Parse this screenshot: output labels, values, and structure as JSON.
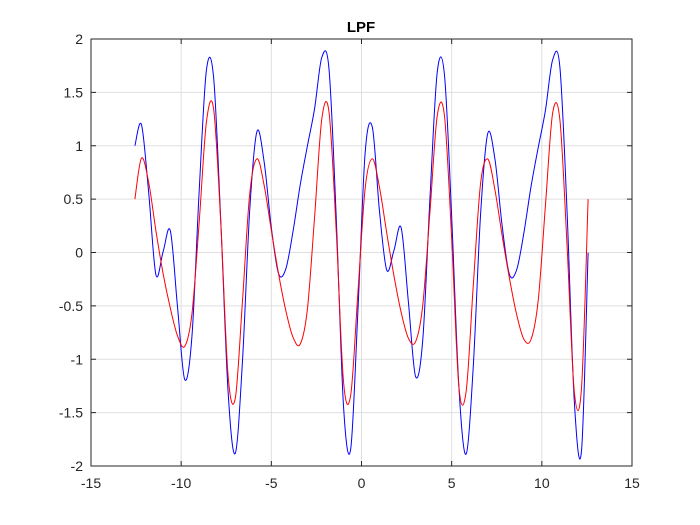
{
  "chart_data": {
    "type": "line",
    "title": "LPF",
    "xlabel": "",
    "ylabel": "",
    "xlim": [
      -15,
      15
    ],
    "ylim": [
      -2,
      2
    ],
    "grid": true,
    "x_ticks": [
      -15,
      -10,
      -5,
      0,
      5,
      10,
      15
    ],
    "y_ticks": [
      -2,
      -1.5,
      -1,
      -0.5,
      0,
      0.5,
      1,
      1.5,
      2
    ],
    "x_tick_labels": [
      "-15",
      "-10",
      "-5",
      "0",
      "5",
      "10",
      "15"
    ],
    "y_tick_labels": [
      "-2",
      "-1.5",
      "-1",
      "-0.5",
      "0",
      "0.5",
      "1",
      "1.5",
      "2"
    ],
    "series": [
      {
        "color": "#0000ff",
        "x": [
          -12.566,
          -12.2,
          -11.8,
          -11.4,
          -11.0,
          -10.6,
          -10.2,
          -9.8,
          -9.4,
          -9.0,
          -8.6,
          -8.2,
          -7.8,
          -7.4,
          -7.0,
          -6.6,
          -6.2,
          -5.8,
          -5.4,
          -5.0,
          -4.6,
          -4.2,
          -3.8,
          -3.4,
          -3.0,
          -2.6,
          -2.2,
          -1.8,
          -1.4,
          -1.0,
          -0.6,
          -0.2,
          0.2,
          0.6,
          1.0,
          1.4,
          1.8,
          2.2,
          2.6,
          3.0,
          3.4,
          3.8,
          4.2,
          4.6,
          5.0,
          5.4,
          5.8,
          6.2,
          6.6,
          7.0,
          7.4,
          7.8,
          8.2,
          8.6,
          9.0,
          9.4,
          9.8,
          10.2,
          10.6,
          11.0,
          11.4,
          11.8,
          12.2,
          12.566
        ],
        "y": [
          1.0,
          1.197,
          0.558,
          -0.209,
          0.008,
          0.203,
          -0.515,
          -1.191,
          -0.779,
          0.58,
          1.707,
          1.638,
          0.281,
          -1.298,
          -1.882,
          -1.016,
          0.391,
          1.132,
          0.85,
          0.234,
          -0.198,
          -0.155,
          0.195,
          0.632,
          0.998,
          1.349,
          1.829,
          1.715,
          0.322,
          -1.433,
          -1.841,
          -0.55,
          0.929,
          1.174,
          0.382,
          -0.165,
          0.02,
          0.231,
          -0.463,
          -1.162,
          -0.812,
          0.522,
          1.689,
          1.665,
          0.335,
          -1.258,
          -1.889,
          -1.061,
          0.349,
          1.114,
          0.874,
          0.25,
          -0.204,
          -0.164,
          0.179,
          0.617,
          0.984,
          1.332,
          1.805,
          1.738,
          0.38,
          -1.391,
          -1.857,
          -0.001
        ]
      },
      {
        "color": "#ff0000",
        "x": [
          -12.566,
          -12.2,
          -11.8,
          -11.4,
          -11.0,
          -10.6,
          -10.2,
          -9.8,
          -9.4,
          -9.0,
          -8.6,
          -8.2,
          -7.8,
          -7.4,
          -7.0,
          -6.6,
          -6.2,
          -5.8,
          -5.4,
          -5.0,
          -4.6,
          -4.2,
          -3.8,
          -3.4,
          -3.0,
          -2.6,
          -2.2,
          -1.8,
          -1.4,
          -1.0,
          -0.6,
          -0.2,
          0.2,
          0.6,
          1.0,
          1.4,
          1.8,
          2.2,
          2.6,
          3.0,
          3.4,
          3.8,
          4.2,
          4.6,
          5.0,
          5.4,
          5.8,
          6.2,
          6.6,
          7.0,
          7.4,
          7.8,
          8.2,
          8.6,
          9.0,
          9.4,
          9.8,
          10.2,
          10.6,
          11.0,
          11.4,
          11.8,
          12.2,
          12.566
        ],
        "y": [
          0.5,
          0.885,
          0.655,
          0.203,
          -0.199,
          -0.522,
          -0.782,
          -0.879,
          -0.571,
          0.285,
          1.221,
          1.343,
          0.267,
          -1.149,
          -1.366,
          -0.455,
          0.547,
          0.878,
          0.63,
          0.208,
          -0.199,
          -0.542,
          -0.793,
          -0.858,
          -0.531,
          0.336,
          1.253,
          1.313,
          0.199,
          -1.205,
          -1.337,
          -0.379,
          0.596,
          0.878,
          0.608,
          0.182,
          -0.219,
          -0.561,
          -0.803,
          -0.836,
          -0.489,
          0.389,
          1.281,
          1.281,
          0.131,
          -1.257,
          -1.305,
          -0.304,
          0.642,
          0.876,
          0.586,
          0.157,
          -0.238,
          -0.579,
          -0.811,
          -0.815,
          -0.447,
          0.441,
          1.306,
          1.245,
          0.062,
          -1.303,
          -1.268,
          0.5
        ]
      }
    ]
  }
}
